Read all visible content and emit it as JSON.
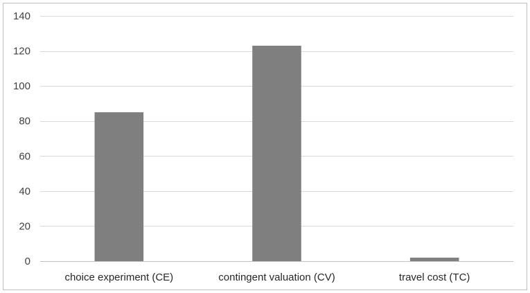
{
  "chart_data": {
    "type": "bar",
    "title": "",
    "xlabel": "",
    "ylabel": "",
    "categories": [
      "choice experiment (CE)",
      "contingent valuation (CV)",
      "travel cost (TC)"
    ],
    "values": [
      85,
      123,
      2
    ],
    "ylim": [
      0,
      140
    ],
    "yticks": [
      0,
      20,
      40,
      60,
      80,
      100,
      120,
      140
    ],
    "grid": true,
    "legend": "none",
    "colors": {
      "bar": "#7f7f7f",
      "grid": "#d9d9d9",
      "axis": "#bfbfbf",
      "border": "#bfbfbf"
    }
  }
}
